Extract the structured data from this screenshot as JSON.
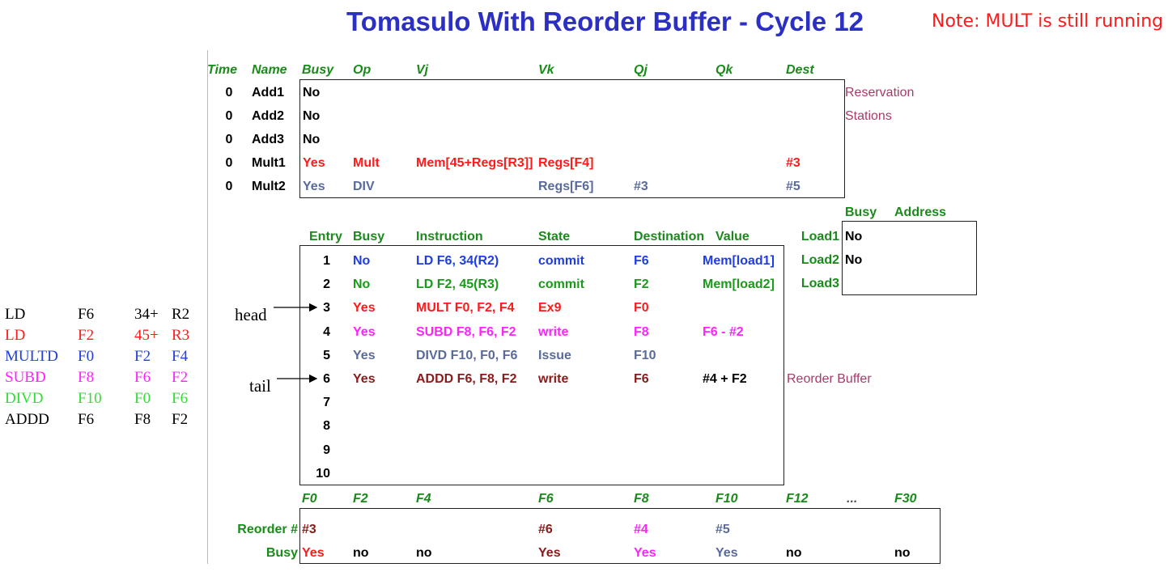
{
  "title": "Tomasulo With Reorder Buffer - Cycle 12",
  "note": "Note: MULT is still running",
  "colors": {
    "red": "#ff1a1a",
    "blue": "#1f3de0",
    "green": "#1a9a1a",
    "magenta": "#ff22ff",
    "gray": "#5a6a9a",
    "maroon": "#8b1a1a",
    "black": "#000000",
    "lightgreen": "#33dd33"
  },
  "rs": {
    "headers": [
      "Time",
      "Name",
      "Busy",
      "Op",
      "Vj",
      "Vk",
      "Qj",
      "Qk",
      "Dest"
    ],
    "rows": [
      {
        "time": "0",
        "name": "Add1",
        "busy": "No",
        "op": "",
        "vj": "",
        "vk": "",
        "qj": "",
        "qk": "",
        "dest": "",
        "color": "black"
      },
      {
        "time": "0",
        "name": "Add2",
        "busy": "No",
        "op": "",
        "vj": "",
        "vk": "",
        "qj": "",
        "qk": "",
        "dest": "",
        "color": "black"
      },
      {
        "time": "0",
        "name": "Add3",
        "busy": "No",
        "op": "",
        "vj": "",
        "vk": "",
        "qj": "",
        "qk": "",
        "dest": "",
        "color": "black"
      },
      {
        "time": "0",
        "name": "Mult1",
        "busy": "Yes",
        "op": "Mult",
        "vj": "Mem[45+Regs[R3]]",
        "vk": "Regs[F4]",
        "qj": "",
        "qk": "",
        "dest": "#3",
        "color": "red"
      },
      {
        "time": "0",
        "name": "Mult2",
        "busy": "Yes",
        "op": "DIV",
        "vj": "",
        "vk": "Regs[F6]",
        "qj": "#3",
        "qk": "",
        "dest": "#5",
        "color": "gray"
      }
    ],
    "label_line1": "Reservation",
    "label_line2": "Stations"
  },
  "loads": {
    "headers": [
      "Busy",
      "Address"
    ],
    "rows": [
      {
        "name": "Load1",
        "busy": "No",
        "address": ""
      },
      {
        "name": "Load2",
        "busy": "No",
        "address": ""
      },
      {
        "name": "Load3",
        "busy": "",
        "address": ""
      }
    ]
  },
  "rob": {
    "headers": [
      "Entry",
      "Busy",
      "Instruction",
      "State",
      "Destination",
      "Value"
    ],
    "rows": [
      {
        "entry": "1",
        "busy": "No",
        "instruction": "LD  F6, 34(R2)",
        "state": "commit",
        "dest": "F6",
        "value": "Mem[load1]",
        "color": "blue"
      },
      {
        "entry": "2",
        "busy": "No",
        "instruction": "LD  F2, 45(R3)",
        "state": "commit",
        "dest": "F2",
        "value": "Mem[load2]",
        "color": "green"
      },
      {
        "entry": "3",
        "busy": "Yes",
        "instruction": "MULT F0, F2, F4",
        "state": "Ex9",
        "dest": "F0",
        "value": "",
        "color": "red"
      },
      {
        "entry": "4",
        "busy": "Yes",
        "instruction": "SUBD F8, F6, F2",
        "state": "write",
        "dest": "F8",
        "value": "F6 - #2",
        "color": "magenta"
      },
      {
        "entry": "5",
        "busy": "Yes",
        "instruction": "DIVD F10, F0, F6",
        "state": "Issue",
        "dest": "F10",
        "value": "",
        "color": "gray"
      },
      {
        "entry": "6",
        "busy": "Yes",
        "instruction": "ADDD F6, F8, F2",
        "state": "write",
        "dest": "F6",
        "value": "#4 + F2",
        "color": "maroon"
      },
      {
        "entry": "7",
        "busy": "",
        "instruction": "",
        "state": "",
        "dest": "",
        "value": "",
        "color": "black"
      },
      {
        "entry": "8",
        "busy": "",
        "instruction": "",
        "state": "",
        "dest": "",
        "value": "",
        "color": "black"
      },
      {
        "entry": "9",
        "busy": "",
        "instruction": "",
        "state": "",
        "dest": "",
        "value": "",
        "color": "black"
      },
      {
        "entry": "10",
        "busy": "",
        "instruction": "",
        "state": "",
        "dest": "",
        "value": "",
        "color": "black"
      }
    ],
    "label": "Reorder Buffer",
    "head_label": "head",
    "tail_label": "tail"
  },
  "regs": {
    "headers": [
      "F0",
      "F2",
      "F4",
      "F6",
      "F8",
      "F10",
      "F12",
      "...",
      "F30"
    ],
    "row_labels": [
      "Reorder #",
      "Busy"
    ],
    "reorder": [
      {
        "v": "#3",
        "color": "maroon"
      },
      {
        "v": "",
        "color": "black"
      },
      {
        "v": "",
        "color": "black"
      },
      {
        "v": "#6",
        "color": "maroon"
      },
      {
        "v": "#4",
        "color": "magenta"
      },
      {
        "v": "#5",
        "color": "gray"
      },
      {
        "v": "",
        "color": "black"
      },
      {
        "v": "",
        "color": "black"
      },
      {
        "v": "",
        "color": "black"
      }
    ],
    "busy": [
      {
        "v": "Yes",
        "color": "red"
      },
      {
        "v": "no",
        "color": "black"
      },
      {
        "v": "no",
        "color": "black"
      },
      {
        "v": "Yes",
        "color": "maroon"
      },
      {
        "v": "Yes",
        "color": "magenta"
      },
      {
        "v": "Yes",
        "color": "gray"
      },
      {
        "v": "no",
        "color": "black"
      },
      {
        "v": "",
        "color": "black"
      },
      {
        "v": "no",
        "color": "black"
      }
    ]
  },
  "program": [
    {
      "op": "LD",
      "a": "F6",
      "b": "34+",
      "c": "R2",
      "color": "black"
    },
    {
      "op": "LD",
      "a": "F2",
      "b": "45+",
      "c": "R3",
      "color": "red"
    },
    {
      "op": "MULTD",
      "a": "F0",
      "b": "F2",
      "c": "F4",
      "color": "blue"
    },
    {
      "op": "SUBD",
      "a": "F8",
      "b": "F6",
      "c": "F2",
      "color": "magenta"
    },
    {
      "op": "DIVD",
      "a": "F10",
      "b": "F0",
      "c": "F6",
      "color": "lightgreen"
    },
    {
      "op": "ADDD",
      "a": "F6",
      "b": "F8",
      "c": "F2",
      "color": "black"
    }
  ]
}
